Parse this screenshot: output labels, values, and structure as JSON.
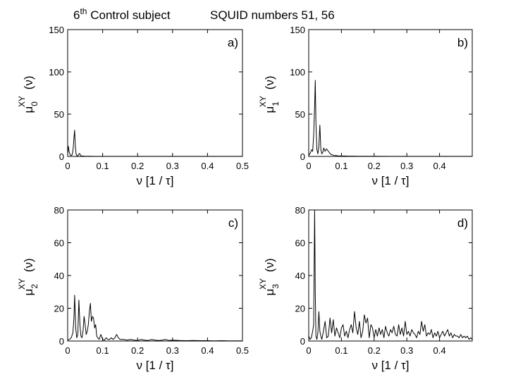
{
  "figure": {
    "title_sup": "th",
    "title_prefix": "6",
    "title_main": " Control subject",
    "title_right": "SQUID numbers 51, 56"
  },
  "chart_data": [
    {
      "type": "line",
      "panel_label": "a)",
      "ylabel": {
        "sym": "μ",
        "sub": "0",
        "sup": "XY",
        "arg": "(ν)"
      },
      "xlabel": "ν [1 / τ]",
      "xlim": [
        0,
        0.5
      ],
      "ylim": [
        0,
        150
      ],
      "xticks": [
        0,
        0.1,
        0.2,
        0.3,
        0.4,
        0.5
      ],
      "xtick_labels": [
        "0",
        "0.1",
        "0.2",
        "0.3",
        "0.4",
        "0.5"
      ],
      "yticks": [
        0,
        50,
        100,
        150
      ],
      "ytick_labels": [
        "0",
        "50",
        "100",
        "150"
      ],
      "series": [
        {
          "x": [
            0,
            0.002,
            0.004,
            0.006,
            0.008,
            0.01,
            0.012,
            0.014,
            0.016,
            0.018,
            0.02,
            0.022,
            0.024,
            0.026,
            0.028,
            0.03,
            0.032,
            0.034,
            0.036,
            0.038,
            0.04,
            0.042,
            0.044,
            0.048,
            0.055,
            0.065,
            0.08,
            0.1,
            0.13,
            0.16,
            0.2,
            0.25,
            0.3,
            0.35,
            0.4,
            0.45,
            0.5
          ],
          "y": [
            2,
            12,
            6,
            3,
            1.5,
            1,
            1.5,
            4,
            10,
            22,
            31,
            12,
            3,
            1,
            0.5,
            1.5,
            2.5,
            3.5,
            2,
            0.8,
            0.5,
            0.3,
            0.5,
            0.3,
            0.2,
            0.2,
            0.1,
            0.1,
            0.1,
            0.1,
            0.1,
            0.1,
            0.1,
            0.1,
            0.1,
            0.1,
            0.1
          ]
        }
      ]
    },
    {
      "type": "line",
      "panel_label": "b)",
      "ylabel": {
        "sym": "μ",
        "sub": "1",
        "sup": "XY",
        "arg": "(ν)"
      },
      "xlabel": "ν [1 / τ]",
      "xlim": [
        0,
        0.5
      ],
      "ylim": [
        0,
        150
      ],
      "xticks": [
        0,
        0.1,
        0.2,
        0.3,
        0.4
      ],
      "xtick_labels": [
        "0",
        "0.1",
        "0.2",
        "0.3",
        "0.4"
      ],
      "yticks": [
        0,
        50,
        100,
        150
      ],
      "ytick_labels": [
        "0",
        "50",
        "100",
        "150"
      ],
      "series": [
        {
          "x": [
            0,
            0.003,
            0.006,
            0.009,
            0.012,
            0.015,
            0.018,
            0.02,
            0.022,
            0.025,
            0.028,
            0.031,
            0.034,
            0.037,
            0.04,
            0.043,
            0.046,
            0.05,
            0.054,
            0.058,
            0.062,
            0.066,
            0.07,
            0.075,
            0.08,
            0.085,
            0.09,
            0.1,
            0.11,
            0.12,
            0.14,
            0.16,
            0.2,
            0.25,
            0.3,
            0.35,
            0.4,
            0.45,
            0.5
          ],
          "y": [
            1,
            3,
            5,
            8,
            6,
            25,
            60,
            90,
            40,
            8,
            3,
            12,
            37,
            8,
            3,
            5,
            10,
            6,
            9,
            7,
            5,
            3,
            2,
            1.5,
            1,
            1,
            0.5,
            0.5,
            0.5,
            0.3,
            0.3,
            0.2,
            0.2,
            0.1,
            0.1,
            0.1,
            0.1,
            0.1,
            0.1
          ]
        }
      ]
    },
    {
      "type": "line",
      "panel_label": "c)",
      "ylabel": {
        "sym": "μ",
        "sub": "2",
        "sup": "XY",
        "arg": "(ν)"
      },
      "xlabel": "ν [1 / τ]",
      "xlim": [
        0,
        0.5
      ],
      "ylim": [
        0,
        80
      ],
      "xticks": [
        0,
        0.1,
        0.2,
        0.3,
        0.4,
        0.5
      ],
      "xtick_labels": [
        "0",
        "0.1",
        "0.2",
        "0.3",
        "0.4",
        "0.5"
      ],
      "yticks": [
        0,
        20,
        40,
        60,
        80
      ],
      "ytick_labels": [
        "0",
        "20",
        "40",
        "60",
        "80"
      ],
      "series": [
        {
          "x": [
            0,
            0.005,
            0.01,
            0.015,
            0.018,
            0.02,
            0.023,
            0.026,
            0.029,
            0.032,
            0.035,
            0.038,
            0.041,
            0.044,
            0.047,
            0.05,
            0.053,
            0.056,
            0.059,
            0.062,
            0.065,
            0.068,
            0.071,
            0.074,
            0.077,
            0.08,
            0.083,
            0.086,
            0.09,
            0.095,
            0.1,
            0.105,
            0.11,
            0.115,
            0.12,
            0.125,
            0.13,
            0.135,
            0.14,
            0.145,
            0.15,
            0.16,
            0.17,
            0.18,
            0.19,
            0.2,
            0.21,
            0.22,
            0.23,
            0.24,
            0.25,
            0.26,
            0.27,
            0.28,
            0.29,
            0.3,
            0.32,
            0.34,
            0.36,
            0.38,
            0.4,
            0.42,
            0.44,
            0.46,
            0.48,
            0.5
          ],
          "y": [
            0.5,
            1,
            2,
            5,
            14,
            28,
            8,
            2,
            4,
            25,
            10,
            3,
            2,
            6,
            15,
            10,
            4,
            6,
            10,
            18,
            23,
            12,
            15,
            14,
            8,
            10,
            3,
            2,
            1,
            4,
            1,
            0.5,
            2,
            1,
            1,
            2,
            1,
            2,
            4,
            2,
            1,
            1,
            0.5,
            1,
            0.5,
            0.3,
            1,
            0.5,
            0.3,
            1,
            0.5,
            0.3,
            0.5,
            1,
            0.3,
            0.5,
            0.3,
            0.2,
            0.3,
            0.2,
            0.2,
            0.1,
            0.2,
            0.1,
            0.1,
            0.1
          ]
        }
      ]
    },
    {
      "type": "line",
      "panel_label": "d)",
      "ylabel": {
        "sym": "μ",
        "sub": "3",
        "sup": "XY",
        "arg": "(ν)"
      },
      "xlabel": "ν [1 / τ]",
      "xlim": [
        0,
        0.5
      ],
      "ylim": [
        0,
        80
      ],
      "xticks": [
        0,
        0.1,
        0.2,
        0.3,
        0.4
      ],
      "xtick_labels": [
        "0",
        "0.1",
        "0.2",
        "0.3",
        "0.4"
      ],
      "yticks": [
        0,
        20,
        40,
        60,
        80
      ],
      "ytick_labels": [
        "0",
        "20",
        "40",
        "60",
        "80"
      ],
      "series": [
        {
          "x": [
            0,
            0.004,
            0.008,
            0.012,
            0.015,
            0.018,
            0.02,
            0.022,
            0.025,
            0.028,
            0.031,
            0.034,
            0.037,
            0.04,
            0.045,
            0.05,
            0.055,
            0.06,
            0.065,
            0.07,
            0.075,
            0.08,
            0.085,
            0.09,
            0.095,
            0.1,
            0.105,
            0.11,
            0.115,
            0.12,
            0.125,
            0.13,
            0.135,
            0.14,
            0.145,
            0.15,
            0.155,
            0.16,
            0.165,
            0.17,
            0.175,
            0.18,
            0.185,
            0.19,
            0.195,
            0.2,
            0.205,
            0.21,
            0.215,
            0.22,
            0.225,
            0.23,
            0.235,
            0.24,
            0.245,
            0.25,
            0.255,
            0.26,
            0.265,
            0.27,
            0.275,
            0.28,
            0.285,
            0.29,
            0.295,
            0.3,
            0.305,
            0.31,
            0.315,
            0.32,
            0.325,
            0.33,
            0.335,
            0.34,
            0.345,
            0.35,
            0.355,
            0.36,
            0.365,
            0.37,
            0.375,
            0.38,
            0.385,
            0.39,
            0.395,
            0.4,
            0.405,
            0.41,
            0.415,
            0.42,
            0.425,
            0.43,
            0.435,
            0.44,
            0.445,
            0.45,
            0.455,
            0.46,
            0.465,
            0.47,
            0.475,
            0.48,
            0.485,
            0.49,
            0.495,
            0.5
          ],
          "y": [
            3,
            1,
            2,
            6,
            10,
            80,
            30,
            3,
            1,
            5,
            18,
            6,
            3,
            1,
            6,
            12,
            2,
            3,
            14,
            5,
            13,
            3,
            8,
            5,
            2,
            8,
            10,
            3,
            6,
            2,
            7,
            10,
            5,
            18,
            8,
            4,
            12,
            2,
            6,
            16,
            11,
            14,
            2,
            10,
            8,
            2,
            7,
            3,
            8,
            4,
            7,
            2,
            9,
            5,
            3,
            7,
            5,
            9,
            4,
            3,
            10,
            4,
            8,
            3,
            12,
            4,
            6,
            3,
            7,
            5,
            4,
            2,
            6,
            4,
            12,
            6,
            10,
            3,
            5,
            4,
            7,
            2,
            5,
            3,
            6,
            2,
            4,
            6,
            3,
            5,
            7,
            3,
            5,
            2,
            4,
            3,
            3,
            2,
            4,
            2,
            3,
            2,
            3,
            1,
            2,
            1
          ]
        }
      ]
    }
  ]
}
